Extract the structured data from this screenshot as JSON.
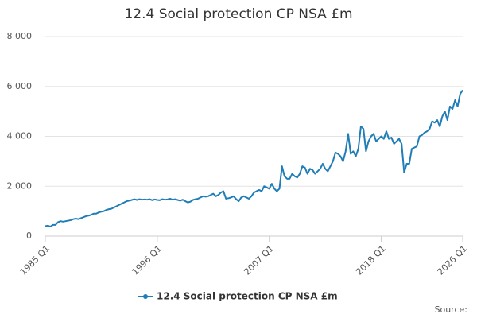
{
  "chart_data": {
    "type": "line",
    "title": "12.4 Social protection CP NSA £m",
    "source": "Source:",
    "categories": [
      "1985 Q1",
      null,
      null,
      null,
      null,
      null,
      null,
      null,
      null,
      null,
      null,
      null,
      null,
      null,
      null,
      null,
      null,
      null,
      null,
      null,
      null,
      null,
      null,
      null,
      null,
      null,
      null,
      null,
      null,
      null,
      null,
      null,
      null,
      null,
      null,
      null,
      null,
      null,
      null,
      null,
      null,
      null,
      null,
      null,
      "1996 Q1",
      null,
      null,
      null,
      null,
      null,
      null,
      null,
      null,
      null,
      null,
      null,
      null,
      null,
      null,
      null,
      null,
      null,
      null,
      null,
      null,
      null,
      null,
      null,
      null,
      null,
      null,
      null,
      null,
      null,
      null,
      null,
      null,
      null,
      null,
      null,
      null,
      null,
      null,
      null,
      null,
      null,
      null,
      null,
      "2007 Q1",
      null,
      null,
      null,
      null,
      null,
      null,
      null,
      null,
      null,
      null,
      null,
      null,
      null,
      null,
      null,
      null,
      null,
      null,
      null,
      null,
      null,
      null,
      null,
      null,
      null,
      null,
      null,
      null,
      null,
      null,
      null,
      null,
      null,
      null,
      null,
      null,
      null,
      null,
      null,
      null,
      null,
      null,
      null,
      "2018 Q1",
      null,
      null,
      null,
      null,
      null,
      null,
      null,
      null,
      null,
      null,
      null,
      null,
      null,
      null,
      null,
      null,
      null,
      null,
      null,
      null,
      null,
      null,
      null,
      null,
      null,
      null,
      null,
      null,
      null,
      null,
      null,
      "2026 Q1"
    ],
    "series": [
      {
        "name": "12.4 Social protection CP NSA £m",
        "color": "#1f7db8",
        "values": [
          400,
          420,
          380,
          450,
          450,
          560,
          600,
          580,
          600,
          620,
          640,
          680,
          700,
          680,
          720,
          760,
          800,
          820,
          850,
          900,
          900,
          950,
          980,
          1000,
          1050,
          1080,
          1100,
          1150,
          1200,
          1250,
          1300,
          1350,
          1400,
          1420,
          1450,
          1480,
          1450,
          1480,
          1460,
          1470,
          1460,
          1480,
          1440,
          1470,
          1450,
          1440,
          1480,
          1460,
          1470,
          1500,
          1460,
          1480,
          1450,
          1420,
          1460,
          1400,
          1350,
          1380,
          1450,
          1480,
          1500,
          1550,
          1600,
          1580,
          1600,
          1650,
          1700,
          1600,
          1650,
          1750,
          1800,
          1500,
          1520,
          1550,
          1600,
          1480,
          1400,
          1550,
          1600,
          1550,
          1500,
          1600,
          1750,
          1800,
          1850,
          1800,
          2000,
          1950,
          1900,
          2100,
          1900,
          1800,
          1900,
          2800,
          2400,
          2300,
          2300,
          2500,
          2400,
          2350,
          2500,
          2800,
          2750,
          2500,
          2700,
          2650,
          2500,
          2600,
          2700,
          2900,
          2700,
          2600,
          2800,
          3000,
          3350,
          3300,
          3200,
          3000,
          3400,
          4100,
          3300,
          3400,
          3200,
          3500,
          4400,
          4300,
          3400,
          3800,
          4000,
          4100,
          3800,
          3900,
          4000,
          3900,
          4200,
          3900,
          3950,
          3700,
          3800,
          3900,
          3700,
          2550,
          2900,
          2900,
          3500,
          3550,
          3600,
          4000,
          4050,
          4150,
          4200,
          4300,
          4600,
          4550,
          4650,
          4400,
          4800,
          5000,
          4650,
          5200,
          5100,
          5450,
          5200,
          5700,
          5850
        ]
      }
    ],
    "ylim": [
      0,
      8000
    ],
    "yticks": [
      0,
      {
        "value": 2000,
        "label": "2 000"
      },
      {
        "value": 4000,
        "label": "4 000"
      },
      {
        "value": 6000,
        "label": "6 000"
      },
      {
        "value": 8000,
        "label": "8 000"
      }
    ],
    "grid": true
  }
}
